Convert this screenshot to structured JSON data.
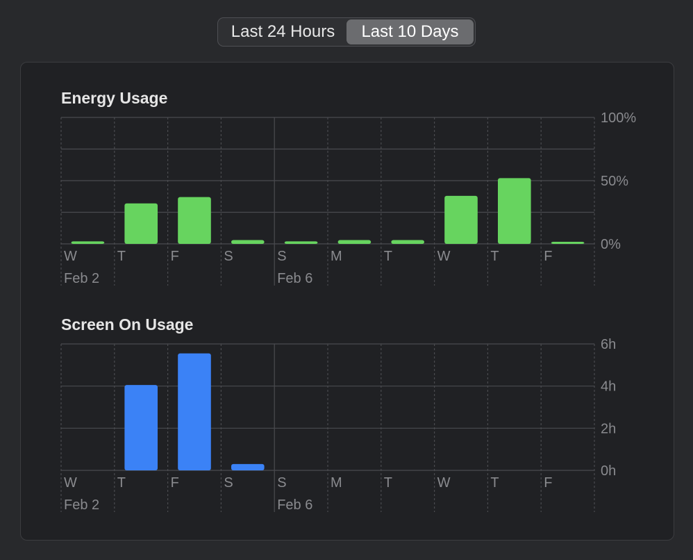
{
  "range_selector": {
    "options": [
      "Last 24 Hours",
      "Last 10 Days"
    ],
    "selected": "Last 10 Days"
  },
  "colors": {
    "energy_bar": "#67d45f",
    "screen_bar": "#3b82f6",
    "grid": "#4a4b4f",
    "label": "#8a8b8f"
  },
  "chart_data": [
    {
      "type": "bar",
      "title": "Energy Usage",
      "categories": [
        "W",
        "T",
        "F",
        "S",
        "S",
        "M",
        "T",
        "W",
        "T",
        "F"
      ],
      "date_labels": [
        "Feb 2",
        "",
        "",
        "",
        "Feb 6",
        "",
        "",
        "",
        "",
        ""
      ],
      "values": [
        2,
        32,
        37,
        3,
        2,
        3,
        3,
        38,
        52,
        1
      ],
      "unit": "%",
      "ylim": [
        0,
        100
      ],
      "yticks": [
        "100%",
        "50%",
        "0%"
      ],
      "grid": true
    },
    {
      "type": "bar",
      "title": "Screen On Usage",
      "categories": [
        "W",
        "T",
        "F",
        "S",
        "S",
        "M",
        "T",
        "W",
        "T",
        "F"
      ],
      "date_labels": [
        "Feb 2",
        "",
        "",
        "",
        "Feb 6",
        "",
        "",
        "",
        "",
        ""
      ],
      "values": [
        0,
        4.05,
        5.55,
        0.3,
        0,
        0,
        0,
        0,
        0,
        0
      ],
      "unit": "h",
      "ylim": [
        0,
        6
      ],
      "yticks": [
        "6h",
        "4h",
        "2h",
        "0h"
      ],
      "grid": true
    }
  ]
}
